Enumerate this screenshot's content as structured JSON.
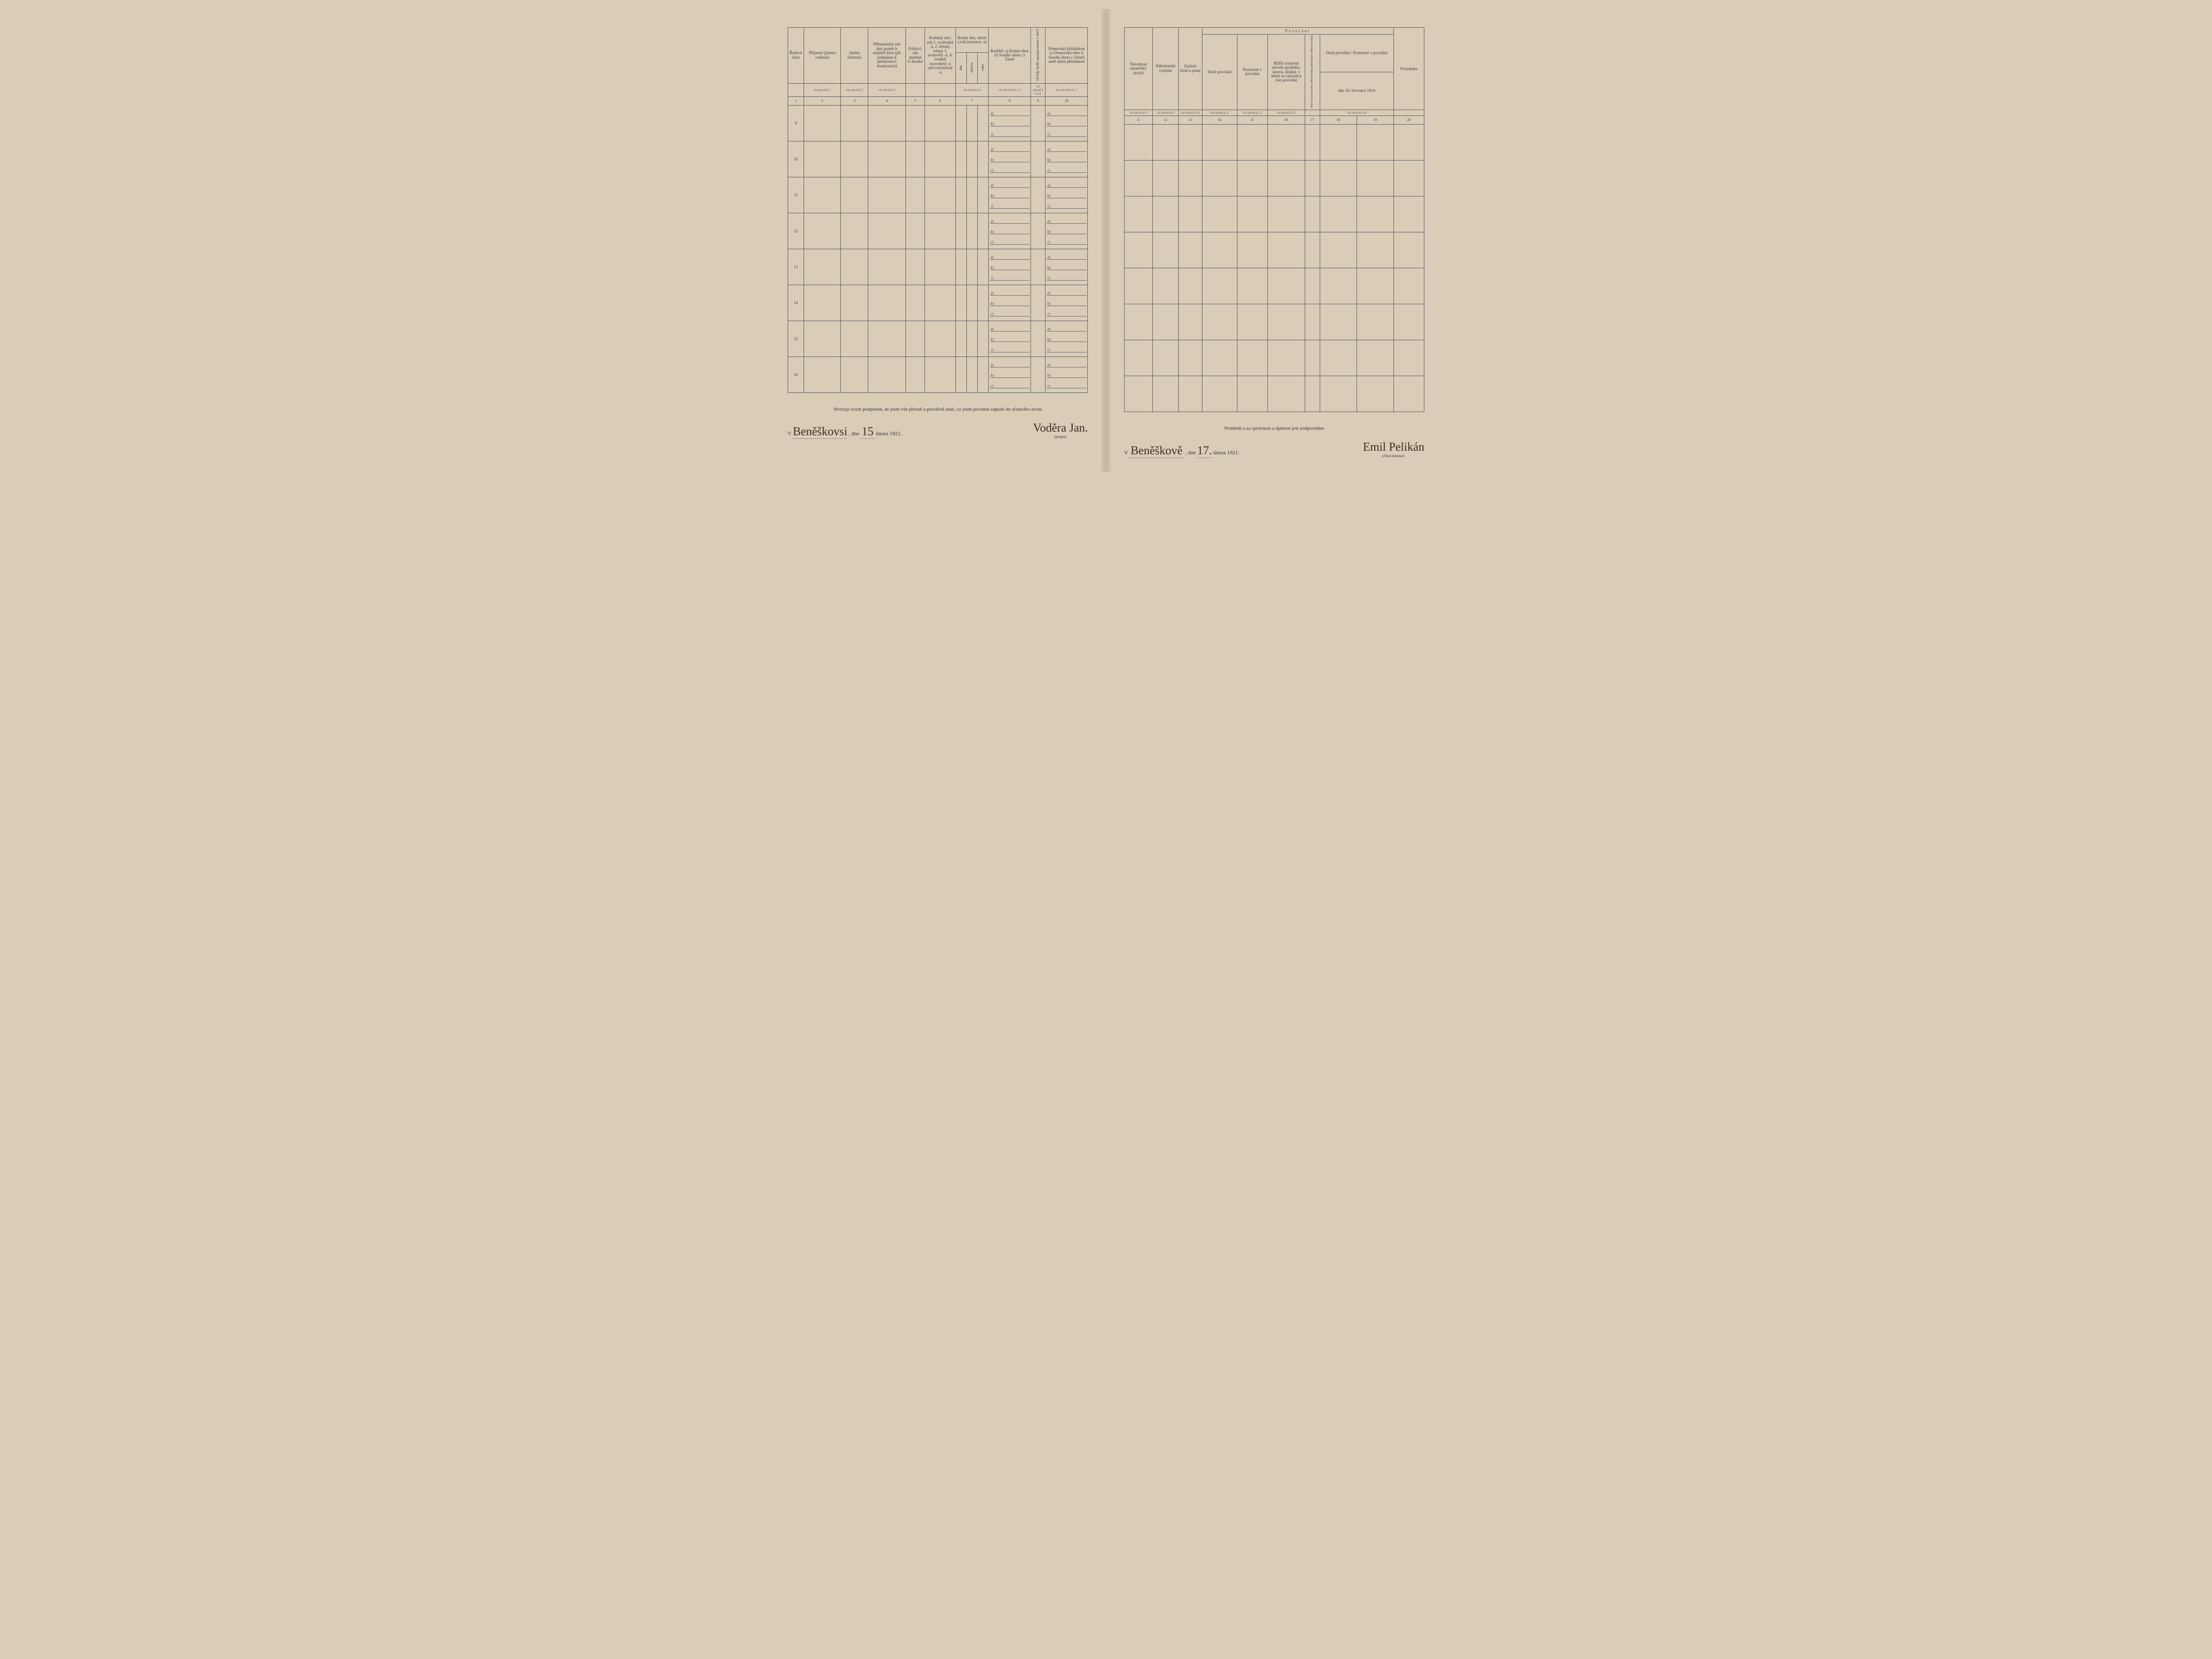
{
  "left": {
    "headers": {
      "c1": "Řadové číslo",
      "c2": "Příjmení\n(jméno rodinné)",
      "c3": "Jméno\n(křestní)",
      "c4": "Příbuzenský neb jiný poměr k majiteli bytu (při podnájmu k přednostovi domácnosti)",
      "c5": "Pohlaví, zda mužské či ženské",
      "c6": "Rodinný stav, zda 1. svobodný -á, 2. ženatý, vdaná 3. ovdovělý -á, 4. soudně rozvedený -á neb rozloučený -á",
      "c7": "Rodný den, měsíc a rok (narozen -a)",
      "c7a": "dne",
      "c7b": "měsíce",
      "c7c": "roku",
      "c8": "Rodiště:\na) Rodná obec\nb) Soudní okres\nc) Země",
      "c9": "Od kdy bydlí zapsaná osoba v obci?",
      "c10": "Domovská příslušnost (a Domovská obec b Soudní okres c Země) aneb státní příslušnost"
    },
    "hints": {
      "h2": "viz návod § 1",
      "h3": "viz návod § 2",
      "h4": "viz návod § 3",
      "h7": "viz návod § 4",
      "h8": "viz návod § 4 a 5",
      "h9": "viz návod § 4 a 6",
      "h10": "viz návod § 4 a 7"
    },
    "colnums": [
      "1",
      "2",
      "3",
      "4",
      "5",
      "6",
      "7",
      "8",
      "9",
      "10"
    ],
    "rownums": [
      "9",
      "10",
      "11",
      "12",
      "13",
      "14",
      "15",
      "16"
    ],
    "sublabels": [
      "a)",
      "b)",
      "c)"
    ],
    "footer_text": "Stvrzuji svým podpisem, že jsem vše přesně a pravdivě udal, co jsem povinen zapsati do sčítacího archu",
    "sig_prefix": "V",
    "sig_place": "Beněškovsi",
    "sig_date_pre": ", dne",
    "sig_date_day": "15",
    "sig_date_rest": "února 1921.",
    "sig_name": "Voděra Jan.",
    "sig_under": "(podpis)"
  },
  "right": {
    "headers": {
      "c11": "Národnost (mateřský jazyk)",
      "c12": "Náboženské vyznání",
      "c13": "Znalost čtení a psaní",
      "grp": "Povolání",
      "c14": "Druh povolání",
      "c15": "Postavení v povolání",
      "c16": "Bližší označení závodu (podniku, ústavu, úřadu), v němž se vykonává toto povolání",
      "c17": "",
      "grp2": "dne 16. července 1914",
      "c18": "Druh povolání",
      "c19": "Postavení v povolání",
      "c20": "Poznámka"
    },
    "hints": {
      "h11": "viz návod § 8",
      "h12": "viz návod § 9",
      "h13": "viz návod § 10",
      "h14": "viz návod § 11",
      "h15": "viz návod § 12",
      "h16": "viz návod § 13",
      "h18": "viz návod § 14"
    },
    "colnums": [
      "11",
      "12",
      "13",
      "14",
      "15",
      "16",
      "17",
      "18",
      "19",
      "20"
    ],
    "footer_text": "Prohlédl a za správnost a úplnost jest zodpověden",
    "sig_prefix": "V",
    "sig_place": "Beněškově",
    "sig_date_pre": ", dne",
    "sig_date_day": "17.",
    "sig_date_rest": "února 1921.",
    "sig_name": "Emil Pelikán",
    "sig_under": "sčítací komisař."
  },
  "style": {
    "bg": "#d9cdb8",
    "border": "#555",
    "text": "#3a3a3a"
  }
}
